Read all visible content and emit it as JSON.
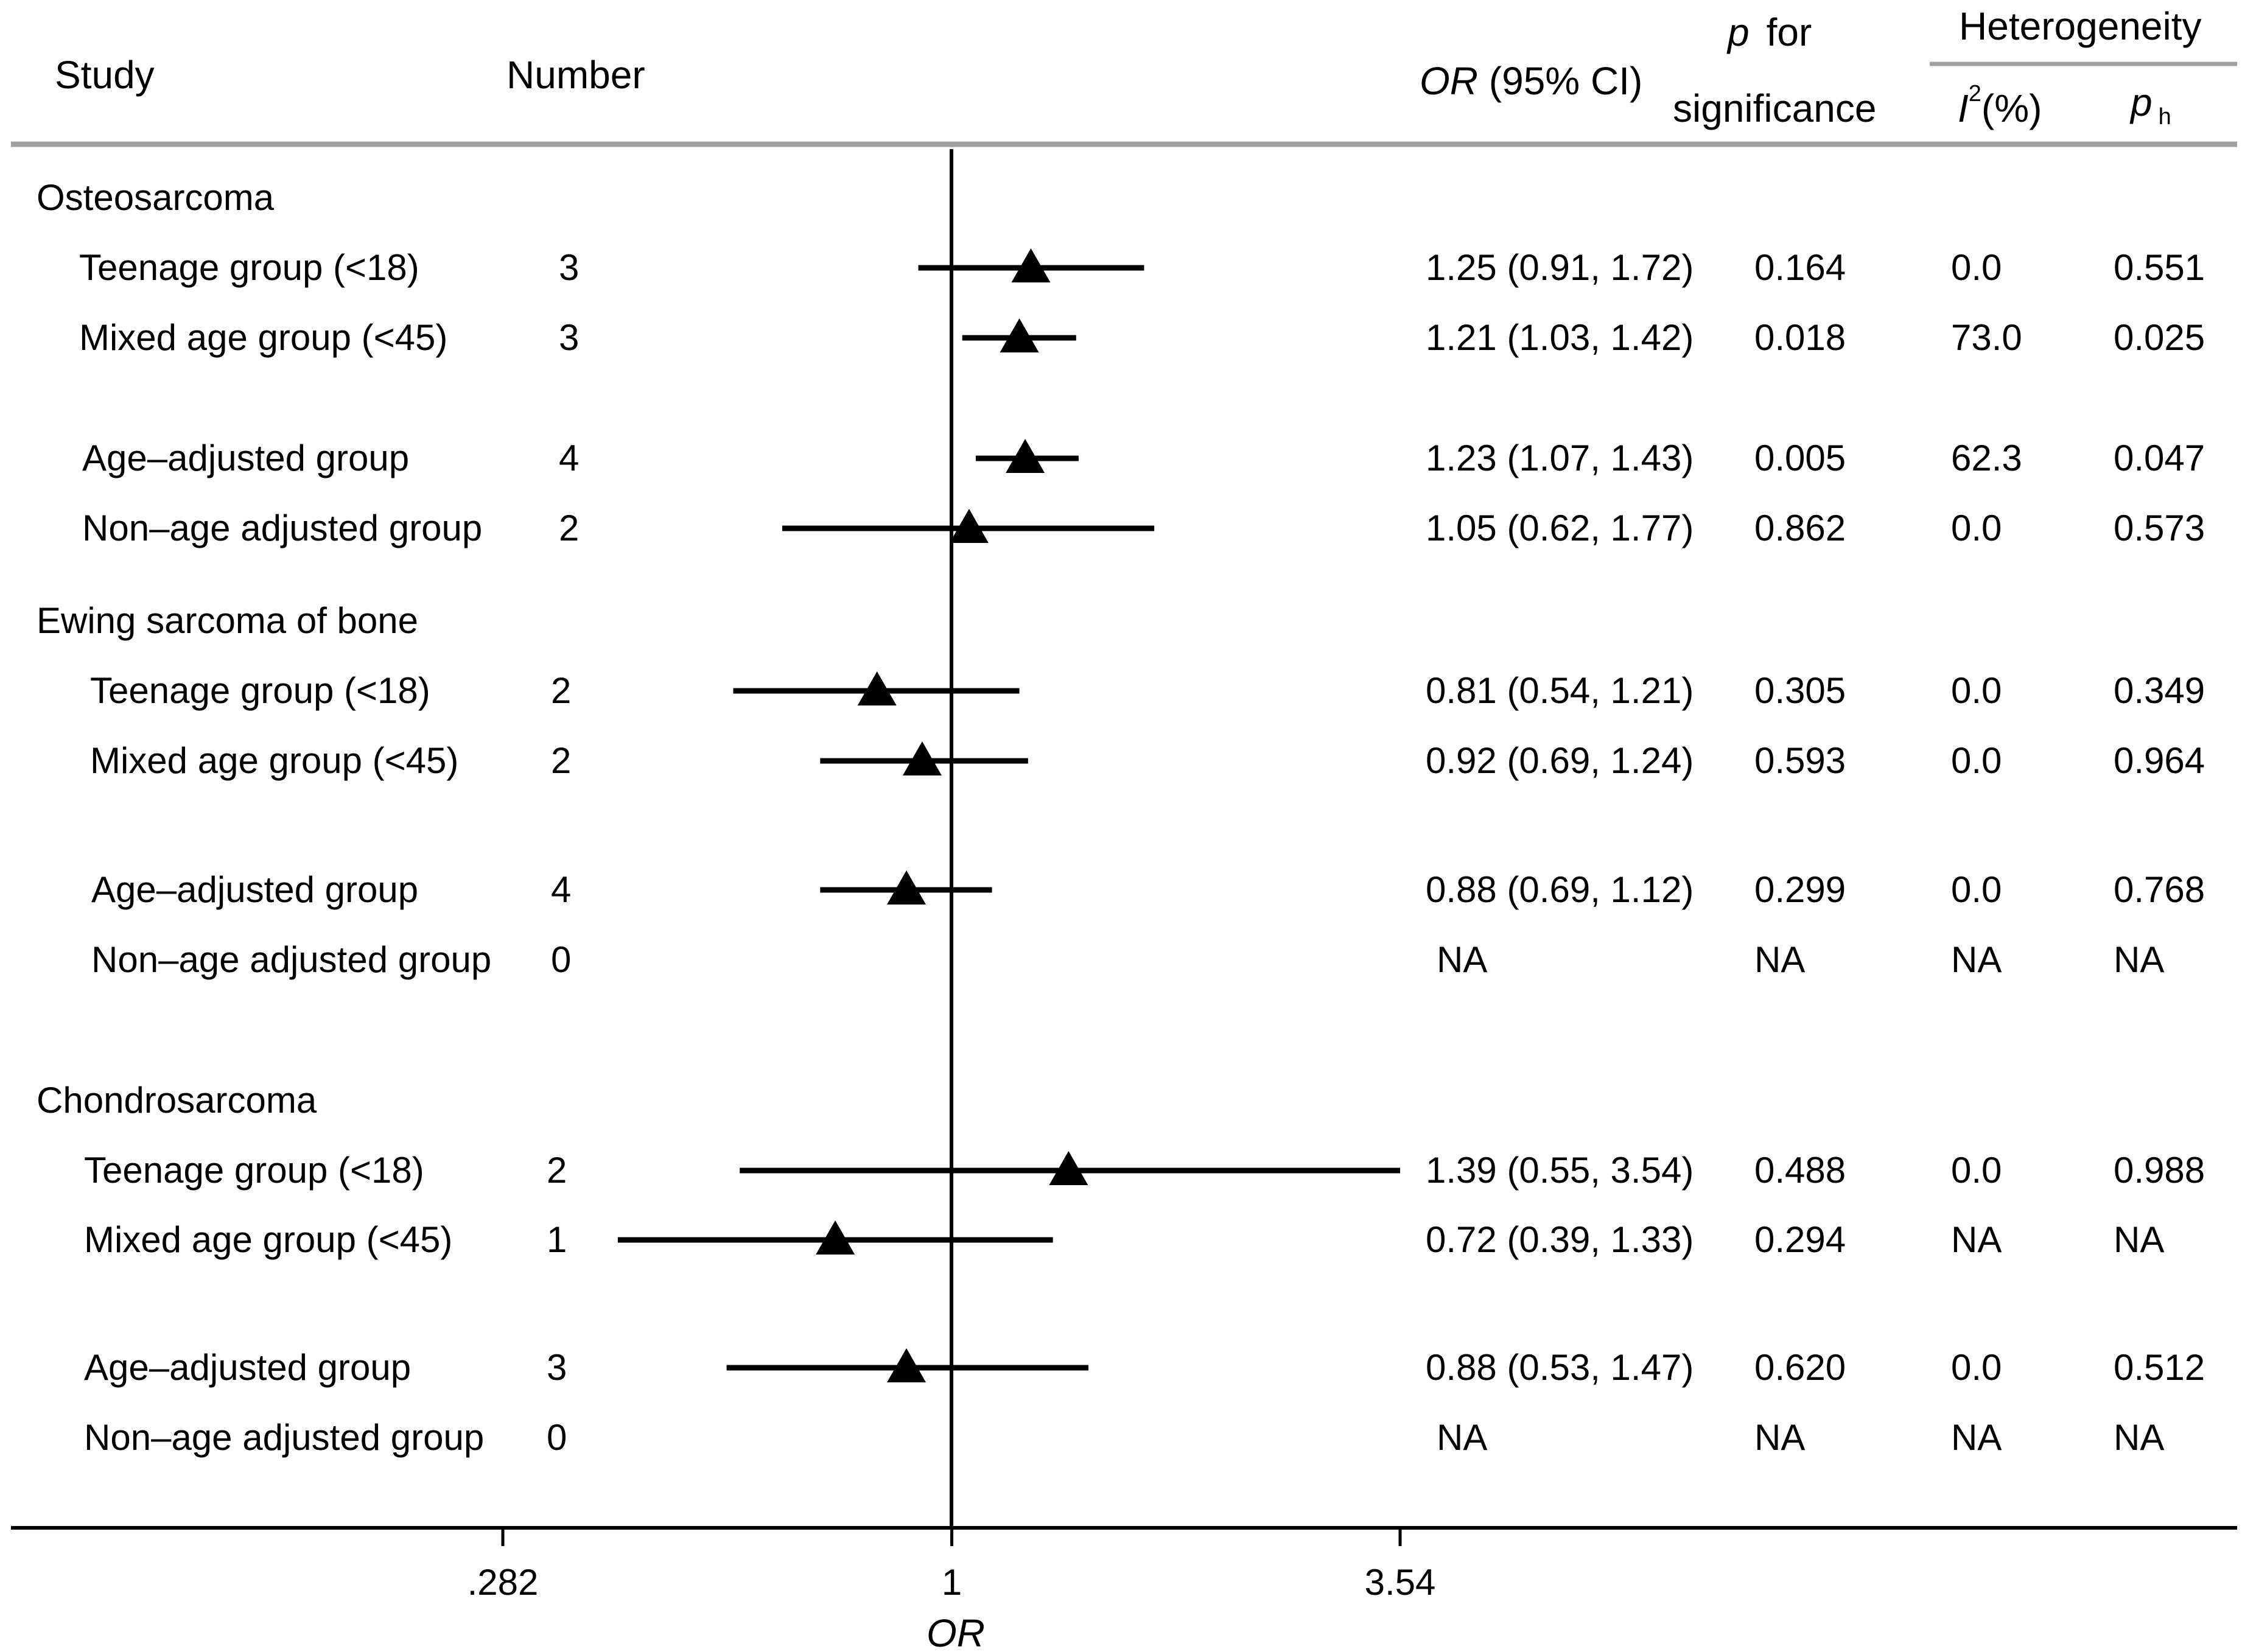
{
  "headers": {
    "study": "Study",
    "number": "Number",
    "or_italic": "OR",
    "or_rest": " (95% CI)",
    "p_italic": "p",
    "p_rest": "for",
    "significance": "significance",
    "heterogeneity": "Heterogeneity",
    "i2_italic": "I",
    "i2_sup": "2",
    "i2_rest": "(%)",
    "ph_italic": "p",
    "ph_sub": "h"
  },
  "chart_data": {
    "type": "forest",
    "xlabel": "OR",
    "scale": "log",
    "xlim": [
      0.282,
      3.54
    ],
    "xticks": [
      ".282",
      "1",
      "3.54"
    ],
    "reference_line": 1,
    "marker": "triangle",
    "groups": [
      {
        "name": "Osteosarcoma",
        "rows": [
          {
            "label": "Teenage  group (<18)",
            "number": "3",
            "or": 1.25,
            "lo": 0.91,
            "hi": 1.72,
            "or_text": "1.25 (0.91, 1.72)",
            "p": "0.164",
            "i2": "0.0",
            "ph": "0.551"
          },
          {
            "label": "Mixed age group (<45)",
            "number": "3",
            "or": 1.21,
            "lo": 1.03,
            "hi": 1.42,
            "or_text": "1.21 (1.03, 1.42)",
            "p": "0.018",
            "i2": "73.0",
            "ph": "0.025"
          },
          {
            "label": "Age–adjusted group",
            "number": "4",
            "or": 1.23,
            "lo": 1.07,
            "hi": 1.43,
            "or_text": "1.23 (1.07, 1.43)",
            "p": "0.005",
            "i2": "62.3",
            "ph": "0.047"
          },
          {
            "label": "Non–age adjusted group",
            "number": "2",
            "or": 1.05,
            "lo": 0.62,
            "hi": 1.77,
            "or_text": "1.05 (0.62, 1.77)",
            "p": "0.862",
            "i2": "0.0",
            "ph": "0.573"
          }
        ]
      },
      {
        "name": "Ewing sarcoma of bone",
        "rows": [
          {
            "label": "Teenage  group (<18)",
            "number": "2",
            "or": 0.81,
            "lo": 0.54,
            "hi": 1.21,
            "or_text": "0.81 (0.54, 1.21)",
            "p": "0.305",
            "i2": "0.0",
            "ph": "0.349"
          },
          {
            "label": "Mixed age group (<45)",
            "number": "2",
            "or": 0.92,
            "lo": 0.69,
            "hi": 1.24,
            "or_text": "0.92 (0.69, 1.24)",
            "p": "0.593",
            "i2": "0.0",
            "ph": "0.964"
          },
          {
            "label": "Age–adjusted group",
            "number": "4",
            "or": 0.88,
            "lo": 0.69,
            "hi": 1.12,
            "or_text": "0.88 (0.69, 1.12)",
            "p": "0.299",
            "i2": "0.0",
            "ph": "0.768"
          },
          {
            "label": "Non–age adjusted group",
            "number": "0",
            "or": null,
            "lo": null,
            "hi": null,
            "or_text": "NA",
            "p": "NA",
            "i2": "NA",
            "ph": "NA"
          }
        ]
      },
      {
        "name": "Chondrosarcoma",
        "rows": [
          {
            "label": "Teenage  group (<18)",
            "number": "2",
            "or": 1.39,
            "lo": 0.55,
            "hi": 3.54,
            "or_text": "1.39 (0.55, 3.54)",
            "p": "0.488",
            "i2": "0.0",
            "ph": "0.988"
          },
          {
            "label": "Mixed age group (<45)",
            "number": "1",
            "or": 0.72,
            "lo": 0.39,
            "hi": 1.33,
            "or_text": "0.72 (0.39, 1.33)",
            "p": "0.294",
            "i2": "NA",
            "ph": "NA"
          },
          {
            "label": "Age–adjusted group",
            "number": "3",
            "or": 0.88,
            "lo": 0.53,
            "hi": 1.47,
            "or_text": "0.88 (0.53, 1.47)",
            "p": "0.620",
            "i2": "0.0",
            "ph": "0.512"
          },
          {
            "label": "Non–age adjusted group",
            "number": "0",
            "or": null,
            "lo": null,
            "hi": null,
            "or_text": "NA",
            "p": "NA",
            "i2": "NA",
            "ph": "NA"
          }
        ]
      }
    ]
  }
}
